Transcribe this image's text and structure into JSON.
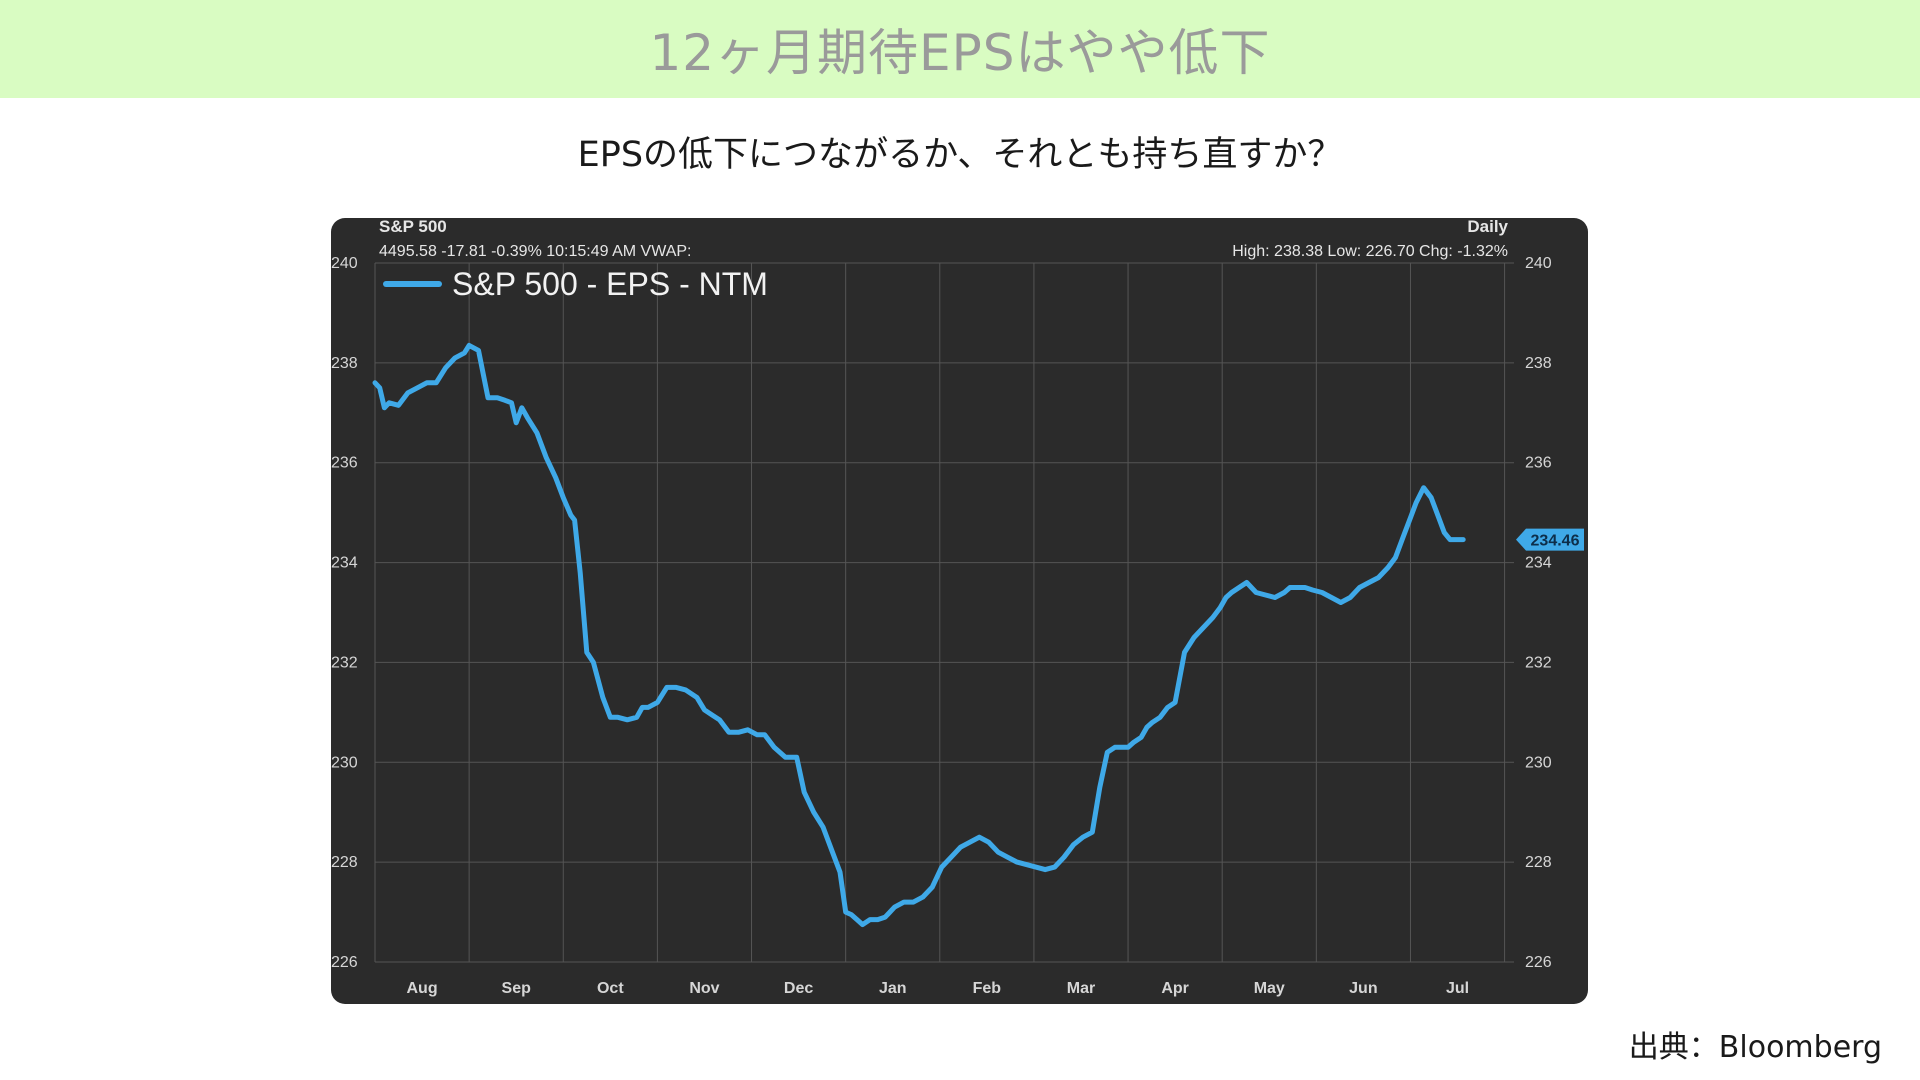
{
  "page": {
    "title": "12ヶ月期待EPSはやや低下",
    "subtitle": "EPSの低下につながるか、それとも持ち直すか？",
    "source": "出典：Bloomberg"
  },
  "colors": {
    "header_band": "#d9fcc2",
    "chart_background": "#2b2b2b",
    "series_line": "#3fa9e8",
    "grid": "#555555"
  },
  "chart_data": {
    "type": "line",
    "header": {
      "instrument": "S&P 500",
      "quote_line": "4495.58 -17.81 -0.39% 10:15:49 AM VWAP:",
      "frequency": "Daily",
      "stats_line": "High: 238.38 Low: 226.70 Chg: -1.32%"
    },
    "months": [
      "Aug",
      "Sep",
      "Oct",
      "Nov",
      "Dec",
      "Jan",
      "Feb",
      "Mar",
      "Apr",
      "May",
      "Jun",
      "Jul"
    ],
    "month_tick_positions": [
      0.0,
      1.0,
      2.0,
      3.0,
      4.0,
      5.0,
      6.0,
      7.0,
      8.0,
      9.0,
      10.0,
      11.0,
      12.0
    ],
    "ylim": [
      226,
      240
    ],
    "y_ticks": [
      "226",
      "228",
      "230",
      "232",
      "234",
      "236",
      "238",
      "240"
    ],
    "grid": true,
    "legend_position": "top-left",
    "last_value_label": "234.46",
    "series": [
      {
        "name": "S&P 500 - EPS - NTM",
        "x": [
          0.0,
          0.05,
          0.1,
          0.15,
          0.25,
          0.35,
          0.45,
          0.55,
          0.65,
          0.75,
          0.85,
          0.95,
          1.0,
          1.1,
          1.2,
          1.3,
          1.38,
          1.45,
          1.5,
          1.56,
          1.62,
          1.72,
          1.82,
          1.92,
          2.0,
          2.08,
          2.12,
          2.18,
          2.25,
          2.32,
          2.42,
          2.5,
          2.58,
          2.68,
          2.78,
          2.84,
          2.9,
          3.0,
          3.1,
          3.2,
          3.3,
          3.42,
          3.5,
          3.58,
          3.66,
          3.76,
          3.86,
          3.96,
          4.06,
          4.14,
          4.24,
          4.36,
          4.48,
          4.56,
          4.66,
          4.76,
          4.86,
          4.94,
          5.0,
          5.06,
          5.12,
          5.18,
          5.26,
          5.34,
          5.42,
          5.52,
          5.62,
          5.72,
          5.82,
          5.92,
          6.02,
          6.12,
          6.22,
          6.32,
          6.42,
          6.52,
          6.62,
          6.72,
          6.82,
          6.92,
          7.02,
          7.12,
          7.22,
          7.32,
          7.42,
          7.52,
          7.62,
          7.7,
          7.78,
          7.86,
          7.94,
          8.0,
          8.06,
          8.14,
          8.2,
          8.26,
          8.34,
          8.42,
          8.5,
          8.6,
          8.7,
          8.8,
          8.9,
          8.98,
          9.04,
          9.1,
          9.18,
          9.26,
          9.36,
          9.46,
          9.56,
          9.66,
          9.72,
          9.8,
          9.88,
          9.96,
          10.06,
          10.16,
          10.26,
          10.36,
          10.46,
          10.56,
          10.66,
          10.76,
          10.84,
          10.92,
          11.0,
          11.06,
          11.14,
          11.22,
          11.3,
          11.36,
          11.42,
          11.48,
          11.52,
          11.56
        ],
        "values": [
          237.6,
          237.5,
          237.1,
          237.2,
          237.15,
          237.4,
          237.5,
          237.6,
          237.6,
          237.9,
          238.1,
          238.2,
          238.35,
          238.25,
          237.3,
          237.3,
          237.25,
          237.2,
          236.8,
          237.1,
          236.9,
          236.6,
          236.1,
          235.7,
          235.3,
          234.95,
          234.85,
          233.8,
          232.2,
          232.0,
          231.3,
          230.9,
          230.9,
          230.85,
          230.9,
          231.1,
          231.1,
          231.2,
          231.5,
          231.5,
          231.45,
          231.3,
          231.05,
          230.95,
          230.85,
          230.6,
          230.6,
          230.65,
          230.55,
          230.55,
          230.3,
          230.1,
          230.1,
          229.4,
          229.0,
          228.7,
          228.2,
          227.8,
          227.0,
          226.95,
          226.85,
          226.75,
          226.85,
          226.85,
          226.9,
          227.1,
          227.2,
          227.2,
          227.3,
          227.5,
          227.9,
          228.1,
          228.3,
          228.4,
          228.5,
          228.4,
          228.2,
          228.1,
          228.0,
          227.95,
          227.9,
          227.85,
          227.9,
          228.1,
          228.35,
          228.5,
          228.6,
          229.5,
          230.2,
          230.3,
          230.3,
          230.3,
          230.4,
          230.5,
          230.7,
          230.8,
          230.9,
          231.1,
          231.2,
          232.2,
          232.5,
          232.7,
          232.9,
          233.1,
          233.3,
          233.4,
          233.5,
          233.6,
          233.4,
          233.35,
          233.3,
          233.4,
          233.5,
          233.5,
          233.5,
          233.45,
          233.4,
          233.3,
          233.2,
          233.3,
          233.5,
          233.6,
          233.7,
          233.9,
          234.1,
          234.5,
          234.9,
          235.2,
          235.5,
          235.3,
          234.9,
          234.6,
          234.46,
          234.46,
          234.46,
          234.46
        ]
      }
    ]
  }
}
